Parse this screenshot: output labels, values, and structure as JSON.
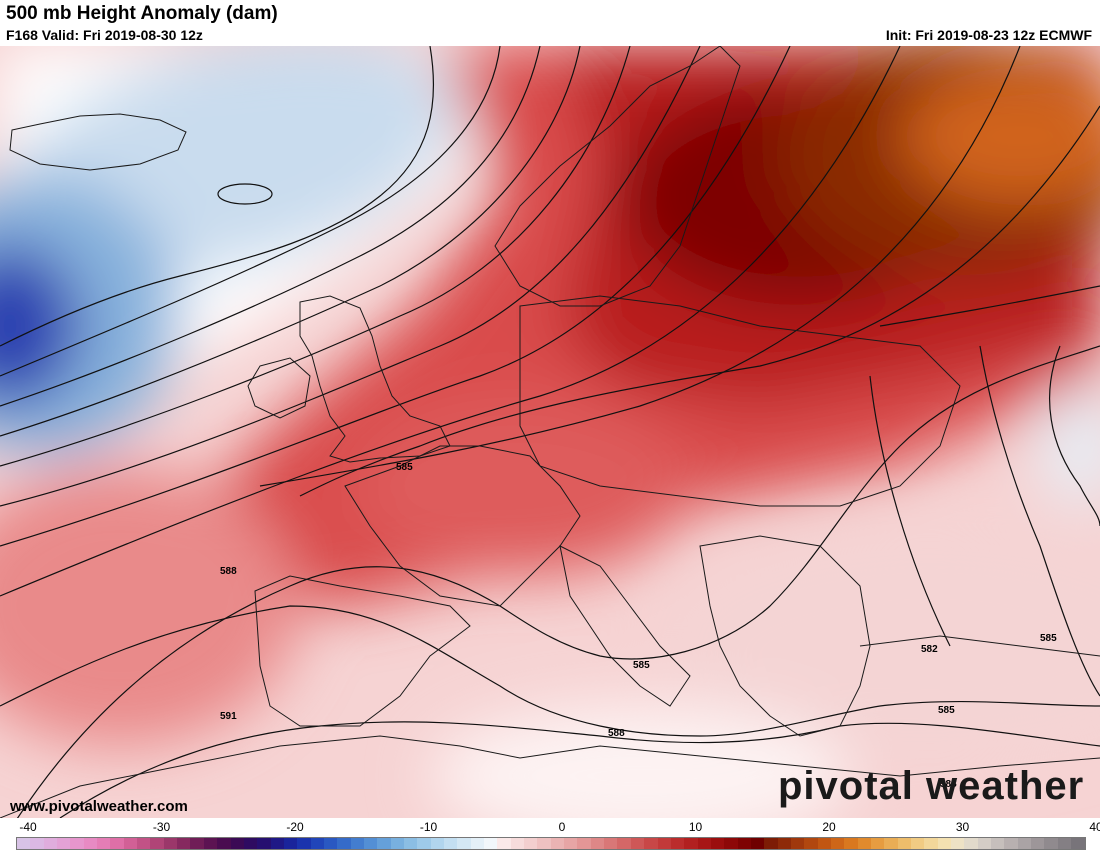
{
  "header": {
    "title": "500 mb Height Anomaly (dam)",
    "valid": "F168 Valid: Fri 2019-08-30 12z",
    "init": "Init: Fri 2019-08-23 12z ECMWF"
  },
  "map": {
    "contour_labels": [
      "585",
      "588",
      "591",
      "585",
      "588",
      "585",
      "582",
      "585",
      "588"
    ],
    "anomaly_colors": {
      "negative_strong": "#2a3fb0",
      "negative_mid": "#6e9fd2",
      "negative_light": "#dbe7f3",
      "positive_light": "#f8d9d9",
      "positive_mid": "#e36a6a",
      "positive_strong": "#a80f17",
      "positive_extreme": "#7a0000",
      "positive_orange": "#d3691c"
    }
  },
  "footer": {
    "website": "www.pivotalweather.com",
    "brand": "pivotal weather"
  },
  "colorbar": {
    "min": -40,
    "max": 40,
    "labels": [
      "-40",
      "-30",
      "-20",
      "-10",
      "0",
      "10",
      "20",
      "30",
      "40"
    ],
    "colors": [
      "#d8c3e6",
      "#dcb8e3",
      "#e0addd",
      "#e3a2d6",
      "#e696cd",
      "#e78ac3",
      "#e57db6",
      "#df6fa7",
      "#d26096",
      "#c25286",
      "#b04477",
      "#9b376a",
      "#86295f",
      "#701d57",
      "#5c1352",
      "#4a0c50",
      "#3b0a55",
      "#2e0b61",
      "#260f70",
      "#1f1886",
      "#1a249b",
      "#1b33ad",
      "#2145b9",
      "#2a58c2",
      "#356bc9",
      "#437dcf",
      "#538fd5",
      "#65a0da",
      "#78b0df",
      "#8bbee4",
      "#9ecae9",
      "#b1d5ee",
      "#c3dff2",
      "#d4e8f5",
      "#e4f0f8",
      "#f2f7fb",
      "#fbe9e9",
      "#f7dcdc",
      "#f3cfcf",
      "#efc1c1",
      "#ebb3b3",
      "#e7a5a5",
      "#e39696",
      "#de8787",
      "#d97777",
      "#d46767",
      "#ce5757",
      "#c84747",
      "#c23939",
      "#bb2c2c",
      "#b22020",
      "#a71616",
      "#9b0e0e",
      "#8d0808",
      "#7e0303",
      "#6f0000",
      "#7d1c05",
      "#8e2a08",
      "#a0380c",
      "#b1470f",
      "#c15612",
      "#ce6618",
      "#d9781f",
      "#e08a2d",
      "#e69c40",
      "#eaad55",
      "#eebd6b",
      "#f1cb83",
      "#f3d79a",
      "#f4e1b1",
      "#eee2c5",
      "#e2dacb",
      "#d4cdc6",
      "#c6bfbc",
      "#b8b0b0",
      "#aaa3a5",
      "#9d9699",
      "#908a8e",
      "#847f84",
      "#78747a"
    ]
  }
}
